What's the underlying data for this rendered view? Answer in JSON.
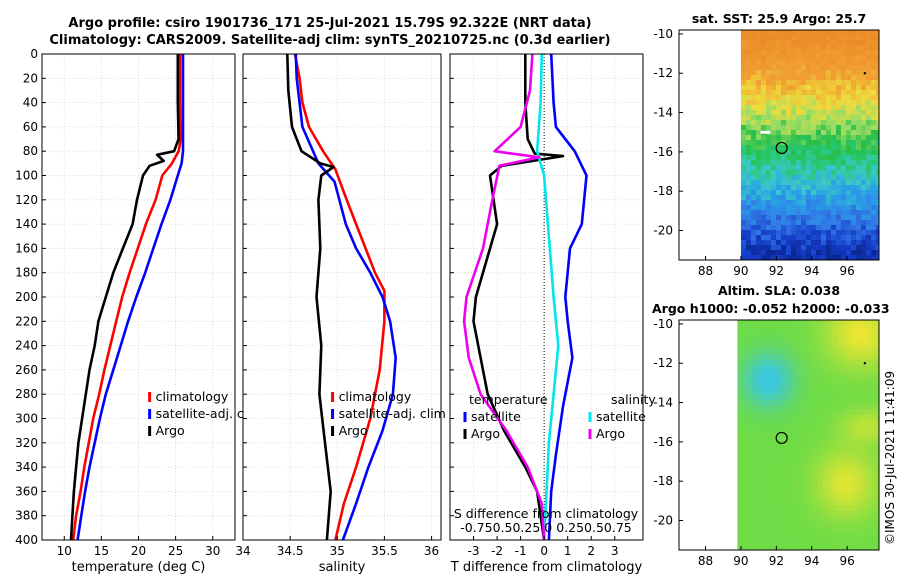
{
  "header": {
    "line1": "Argo profile: csiro 1901736_171 25-Jul-2021 15.79S 92.322E (NRT data)",
    "line2": "Climatology: CARS2009. Satellite-adj clim: synTS_20210725.nc (0.3d earlier)"
  },
  "colors": {
    "climatology": "#ff0000",
    "satellite": "#0000ff",
    "argo": "#000000",
    "diff_temp_sat": "#0000ff",
    "diff_sal_sat": "#00e5ee",
    "diff_sal_argo": "#ee00ee"
  },
  "depth_axis": {
    "ylim": [
      0,
      400
    ],
    "ticks": [
      0,
      20,
      40,
      60,
      80,
      100,
      120,
      140,
      160,
      180,
      200,
      220,
      240,
      260,
      280,
      300,
      320,
      340,
      360,
      380,
      400
    ]
  },
  "chart_data": [
    {
      "id": "temperature",
      "type": "line",
      "xlabel": "temperature (deg C)",
      "xlim": [
        7,
        33
      ],
      "xticks": [
        10,
        15,
        20,
        25,
        30
      ],
      "legend": [
        "climatology",
        "satellite-adj. clim",
        "Argo"
      ],
      "series": [
        {
          "name": "climatology",
          "color": "#ff0000",
          "points": [
            [
              25.6,
              0
            ],
            [
              25.6,
              40
            ],
            [
              25.7,
              70
            ],
            [
              25.4,
              80
            ],
            [
              24.5,
              90
            ],
            [
              23.2,
              100
            ],
            [
              22.3,
              120
            ],
            [
              21.0,
              140
            ],
            [
              19.9,
              160
            ],
            [
              18.8,
              180
            ],
            [
              17.8,
              200
            ],
            [
              17.0,
              220
            ],
            [
              16.2,
              240
            ],
            [
              15.4,
              260
            ],
            [
              14.7,
              280
            ],
            [
              13.9,
              300
            ],
            [
              13.3,
              320
            ],
            [
              12.7,
              340
            ],
            [
              12.2,
              360
            ],
            [
              11.6,
              380
            ],
            [
              11.2,
              400
            ]
          ]
        },
        {
          "name": "satellite-adj. clim",
          "color": "#0000ff",
          "points": [
            [
              26.0,
              0
            ],
            [
              26.0,
              40
            ],
            [
              26.0,
              80
            ],
            [
              25.8,
              90
            ],
            [
              25.3,
              100
            ],
            [
              24.3,
              120
            ],
            [
              23.1,
              140
            ],
            [
              22.0,
              160
            ],
            [
              20.9,
              180
            ],
            [
              19.7,
              200
            ],
            [
              18.6,
              220
            ],
            [
              17.6,
              240
            ],
            [
              16.6,
              260
            ],
            [
              15.6,
              280
            ],
            [
              14.8,
              300
            ],
            [
              14.1,
              320
            ],
            [
              13.4,
              340
            ],
            [
              12.8,
              360
            ],
            [
              12.3,
              380
            ],
            [
              11.8,
              400
            ]
          ]
        },
        {
          "name": "Argo",
          "color": "#000000",
          "points": [
            [
              25.3,
              0
            ],
            [
              25.3,
              40
            ],
            [
              25.4,
              70
            ],
            [
              24.8,
              80
            ],
            [
              22.5,
              83
            ],
            [
              23.4,
              88
            ],
            [
              21.5,
              92
            ],
            [
              20.6,
              100
            ],
            [
              19.8,
              120
            ],
            [
              19.2,
              140
            ],
            [
              17.9,
              160
            ],
            [
              16.6,
              180
            ],
            [
              15.6,
              200
            ],
            [
              14.6,
              220
            ],
            [
              14.1,
              240
            ],
            [
              13.4,
              260
            ],
            [
              12.9,
              280
            ],
            [
              12.4,
              300
            ],
            [
              11.9,
              320
            ],
            [
              11.6,
              340
            ],
            [
              11.3,
              360
            ],
            [
              11.1,
              380
            ],
            [
              10.9,
              400
            ]
          ]
        }
      ]
    },
    {
      "id": "salinity",
      "type": "line",
      "xlabel": "salinity",
      "xlim": [
        34.0,
        36.1
      ],
      "xticks": [
        34,
        34.5,
        35,
        35.5,
        36
      ],
      "legend": [
        "climatology",
        "satellite-adj. clim",
        "Argo"
      ],
      "series": [
        {
          "name": "climatology",
          "color": "#ff0000",
          "points": [
            [
              34.55,
              0
            ],
            [
              34.6,
              20
            ],
            [
              34.63,
              40
            ],
            [
              34.7,
              60
            ],
            [
              34.85,
              80
            ],
            [
              34.98,
              95
            ],
            [
              35.1,
              120
            ],
            [
              35.2,
              140
            ],
            [
              35.3,
              160
            ],
            [
              35.4,
              180
            ],
            [
              35.5,
              195
            ],
            [
              35.5,
              220
            ],
            [
              35.45,
              260
            ],
            [
              35.35,
              300
            ],
            [
              35.2,
              340
            ],
            [
              35.07,
              370
            ],
            [
              34.98,
              400
            ]
          ]
        },
        {
          "name": "satellite-adj. clim",
          "color": "#0000ff",
          "points": [
            [
              34.56,
              0
            ],
            [
              34.57,
              20
            ],
            [
              34.63,
              60
            ],
            [
              34.8,
              90
            ],
            [
              34.97,
              105
            ],
            [
              35.09,
              140
            ],
            [
              35.2,
              160
            ],
            [
              35.35,
              180
            ],
            [
              35.48,
              200
            ],
            [
              35.56,
              220
            ],
            [
              35.62,
              250
            ],
            [
              35.59,
              280
            ],
            [
              35.48,
              310
            ],
            [
              35.33,
              340
            ],
            [
              35.2,
              370
            ],
            [
              35.06,
              400
            ]
          ]
        },
        {
          "name": "Argo",
          "color": "#000000",
          "points": [
            [
              34.47,
              0
            ],
            [
              34.48,
              30
            ],
            [
              34.52,
              60
            ],
            [
              34.62,
              80
            ],
            [
              34.82,
              90
            ],
            [
              34.96,
              93
            ],
            [
              34.83,
              100
            ],
            [
              34.8,
              120
            ],
            [
              34.82,
              160
            ],
            [
              34.78,
              200
            ],
            [
              34.83,
              240
            ],
            [
              34.81,
              280
            ],
            [
              34.87,
              320
            ],
            [
              34.93,
              360
            ],
            [
              34.89,
              400
            ]
          ]
        }
      ]
    },
    {
      "id": "difference",
      "type": "line",
      "xlabel": "T difference from climatology",
      "secondary_xlabel": "S difference from climatology",
      "secondary_ticks": "-0.750.50.25 0  0.250.50.75",
      "xlim": [
        -4,
        4.2
      ],
      "xticks": [
        -3,
        -2,
        -1,
        0,
        1,
        2,
        3
      ],
      "legend_title_left": "temperature",
      "legend_title_right": "salinity",
      "legend": [
        "satellite",
        "Argo",
        "satellite",
        "Argo"
      ],
      "series": [
        {
          "name": "temperature satellite",
          "color": "#0000ff",
          "points": [
            [
              0.3,
              0
            ],
            [
              0.4,
              40
            ],
            [
              0.5,
              60
            ],
            [
              0.9,
              70
            ],
            [
              1.3,
              80
            ],
            [
              1.8,
              100
            ],
            [
              1.6,
              140
            ],
            [
              1.1,
              160
            ],
            [
              0.9,
              200
            ],
            [
              1.0,
              220
            ],
            [
              1.2,
              250
            ],
            [
              0.8,
              290
            ],
            [
              0.5,
              330
            ],
            [
              0.3,
              360
            ],
            [
              0.2,
              400
            ]
          ]
        },
        {
          "name": "temperature Argo",
          "color": "#000000",
          "points": [
            [
              -0.8,
              0
            ],
            [
              -0.8,
              40
            ],
            [
              -0.7,
              70
            ],
            [
              -0.4,
              82
            ],
            [
              0.8,
              84
            ],
            [
              -1.8,
              92
            ],
            [
              -2.3,
              100
            ],
            [
              -2.0,
              140
            ],
            [
              -2.9,
              200
            ],
            [
              -3.0,
              220
            ],
            [
              -2.7,
              250
            ],
            [
              -2.4,
              280
            ],
            [
              -1.7,
              310
            ],
            [
              -0.8,
              340
            ],
            [
              -0.3,
              360
            ],
            [
              0.0,
              400
            ]
          ]
        },
        {
          "name": "salinity satellite",
          "color": "#00e5ee",
          "points": [
            [
              -0.1,
              0
            ],
            [
              -0.15,
              40
            ],
            [
              -0.3,
              80
            ],
            [
              0.0,
              100
            ],
            [
              0.4,
              200
            ],
            [
              0.6,
              240
            ],
            [
              0.4,
              280
            ],
            [
              0.2,
              320
            ],
            [
              0.1,
              360
            ],
            [
              0.0,
              400
            ]
          ]
        },
        {
          "name": "salinity Argo",
          "color": "#ee00ee",
          "points": [
            [
              -0.5,
              0
            ],
            [
              -0.6,
              30
            ],
            [
              -1.0,
              60
            ],
            [
              -2.1,
              80
            ],
            [
              -0.2,
              85
            ],
            [
              -1.9,
              92
            ],
            [
              -2.2,
              120
            ],
            [
              -2.6,
              160
            ],
            [
              -3.3,
              200
            ],
            [
              -3.4,
              220
            ],
            [
              -3.2,
              250
            ],
            [
              -2.7,
              280
            ],
            [
              -1.6,
              310
            ],
            [
              -0.7,
              340
            ],
            [
              -0.1,
              370
            ],
            [
              0.0,
              400
            ]
          ]
        }
      ]
    }
  ],
  "maps": [
    {
      "id": "sst-map",
      "type": "heatmap",
      "title": "sat. SST: 25.9 Argo: 25.7",
      "xticks": [
        "88",
        "90",
        "92",
        "94",
        "96"
      ],
      "yticks": [
        "-10",
        "-12",
        "-14",
        "-16",
        "-18",
        "-20"
      ],
      "lon_range": [
        86.5,
        97.8
      ],
      "lat_range": [
        -21.5,
        -9.8
      ],
      "data_lon_start": 90.0,
      "argo_position": {
        "lon": 92.3,
        "lat": -15.8
      }
    },
    {
      "id": "sla-map",
      "type": "heatmap",
      "title": "Altim. SLA: 0.038",
      "subtitle": "Argo h1000: -0.052 h2000: -0.033",
      "xticks": [
        "88",
        "90",
        "92",
        "94",
        "96"
      ],
      "yticks": [
        "-10",
        "-12",
        "-14",
        "-16",
        "-18",
        "-20"
      ],
      "lon_range": [
        86.5,
        97.8
      ],
      "lat_range": [
        -21.5,
        -9.8
      ],
      "data_lon_start": 89.8,
      "argo_position": {
        "lon": 92.3,
        "lat": -15.8
      }
    }
  ],
  "watermark": "©IMOS 30-Jul-2021 11:41:09"
}
